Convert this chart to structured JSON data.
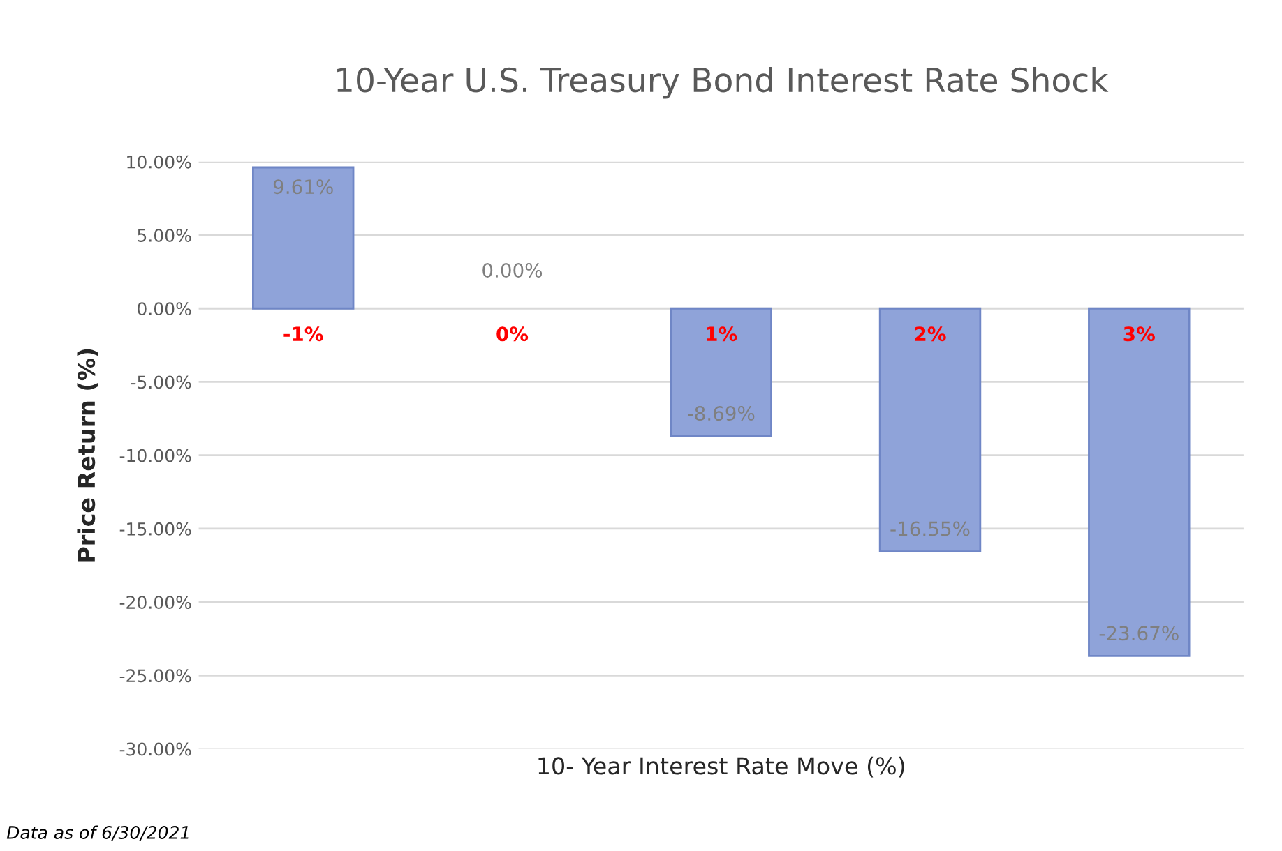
{
  "chart_data": {
    "type": "bar",
    "title": "10-Year U.S. Treasury Bond Interest Rate Shock",
    "xlabel": "10- Year Interest Rate Move (%)",
    "ylabel": "Price Return (%)",
    "categories": [
      "-1%",
      "0%",
      "1%",
      "2%",
      "3%"
    ],
    "values": [
      9.61,
      0.0,
      -8.69,
      -16.55,
      -23.67
    ],
    "value_labels": [
      "9.61%",
      "0.00%",
      "-8.69%",
      "-16.55%",
      "-23.67%"
    ],
    "color": "#8fa3d9",
    "ylim": [
      -30,
      10
    ],
    "yticks": [
      {
        "value": -30,
        "label": "-30.00%"
      },
      {
        "value": -25,
        "label": "-25.00%"
      },
      {
        "value": -20,
        "label": "-20.00%"
      },
      {
        "value": -15,
        "label": "-15.00%"
      },
      {
        "value": -10,
        "label": "-10.00%"
      },
      {
        "value": -5,
        "label": "-5.00%"
      },
      {
        "value": 0,
        "label": "0.00%"
      },
      {
        "value": 5,
        "label": "5.00%"
      },
      {
        "value": 10,
        "label": "10.00%"
      }
    ],
    "grid": "y",
    "annotations": [
      "Data as of 6/30/2021"
    ]
  }
}
